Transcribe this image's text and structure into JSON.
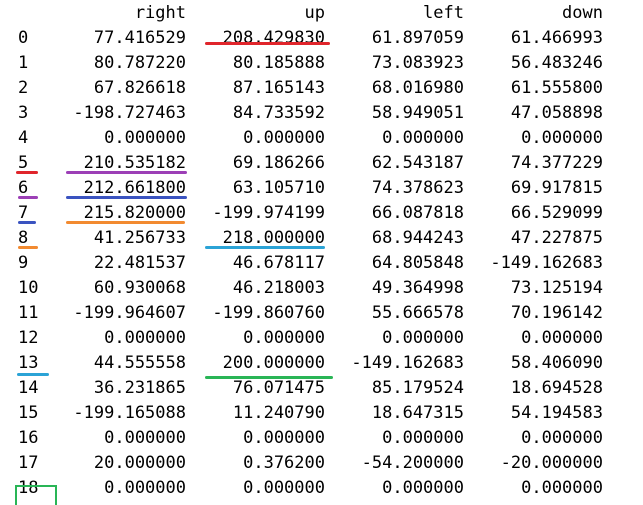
{
  "table": {
    "columns": [
      "right",
      "up",
      "left",
      "down"
    ],
    "rows": [
      {
        "index": "0",
        "right": "77.416529",
        "up": "208.429830",
        "left": "61.897059",
        "down": "61.466993"
      },
      {
        "index": "1",
        "right": "80.787220",
        "up": "80.185888",
        "left": "73.083923",
        "down": "56.483246"
      },
      {
        "index": "2",
        "right": "67.826618",
        "up": "87.165143",
        "left": "68.016980",
        "down": "61.555800"
      },
      {
        "index": "3",
        "right": "-198.727463",
        "up": "84.733592",
        "left": "58.949051",
        "down": "47.058898"
      },
      {
        "index": "4",
        "right": "0.000000",
        "up": "0.000000",
        "left": "0.000000",
        "down": "0.000000"
      },
      {
        "index": "5",
        "right": "210.535182",
        "up": "69.186266",
        "left": "62.543187",
        "down": "74.377229"
      },
      {
        "index": "6",
        "right": "212.661800",
        "up": "63.105710",
        "left": "74.378623",
        "down": "69.917815"
      },
      {
        "index": "7",
        "right": "215.820000",
        "up": "-199.974199",
        "left": "66.087818",
        "down": "66.529099"
      },
      {
        "index": "8",
        "right": "41.256733",
        "up": "218.000000",
        "left": "68.944243",
        "down": "47.227875"
      },
      {
        "index": "9",
        "right": "22.481537",
        "up": "46.678117",
        "left": "64.805848",
        "down": "-149.162683"
      },
      {
        "index": "10",
        "right": "60.930068",
        "up": "46.218003",
        "left": "49.364998",
        "down": "73.125194"
      },
      {
        "index": "11",
        "right": "-199.964607",
        "up": "-199.860760",
        "left": "55.666578",
        "down": "70.196142"
      },
      {
        "index": "12",
        "right": "0.000000",
        "up": "0.000000",
        "left": "0.000000",
        "down": "0.000000"
      },
      {
        "index": "13",
        "right": "44.555558",
        "up": "200.000000",
        "left": "-149.162683",
        "down": "58.406090"
      },
      {
        "index": "14",
        "right": "36.231865",
        "up": "76.071475",
        "left": "85.179524",
        "down": "18.694528"
      },
      {
        "index": "15",
        "right": "-199.165088",
        "up": "11.240790",
        "left": "18.647315",
        "down": "54.194583"
      },
      {
        "index": "16",
        "right": "0.000000",
        "up": "0.000000",
        "left": "0.000000",
        "down": "0.000000"
      },
      {
        "index": "17",
        "right": "20.000000",
        "up": "0.376200",
        "left": "-54.200000",
        "down": "-20.000000"
      },
      {
        "index": "18",
        "right": "0.000000",
        "up": "0.000000",
        "left": "0.000000",
        "down": "0.000000"
      }
    ]
  },
  "annotations": {
    "colors": {
      "red": "#e0252b",
      "purple": "#9c3fb6",
      "blue": "#3a53c0",
      "orange": "#f28a30",
      "cyan": "#2ba3d6",
      "green": "#29b556"
    }
  }
}
